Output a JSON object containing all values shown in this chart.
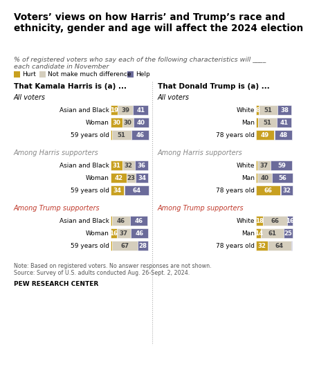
{
  "title": "Voters’ views on how Harris’ and Trump’s race and\nethnicity, gender and age will affect the 2024 election",
  "subtitle": "% of registered voters who say each of the following characteristics will ____\neach candidate in November",
  "note": "Note: Based on registered voters. No answer responses are not shown.\nSource: Survey of U.S. adults conducted Aug. 26-Sept. 2, 2024.",
  "source_bold": "PEW RESEARCH CENTER",
  "colors": {
    "hurt": "#C8A020",
    "neutral": "#D5CEBD",
    "help": "#6B6B9A"
  },
  "harris_col_title": "That Kamala Harris is (a) ...",
  "trump_col_title": "That Donald Trump is (a) ...",
  "sections": [
    {
      "label": "All voters",
      "label_color": "black",
      "harris": [
        {
          "row_label": "Asian and Black",
          "hurt": 19,
          "neutral": 39,
          "help": 41
        },
        {
          "row_label": "Woman",
          "hurt": 30,
          "neutral": 30,
          "help": 40
        },
        {
          "row_label": "59 years old",
          "hurt": 3,
          "neutral": 51,
          "help": 46
        }
      ],
      "trump": [
        {
          "row_label": "White",
          "hurt": 8,
          "neutral": 51,
          "help": 38
        },
        {
          "row_label": "Man",
          "hurt": 5,
          "neutral": 51,
          "help": 41
        },
        {
          "row_label": "78 years old",
          "hurt": 49,
          "neutral": 2,
          "help": 48
        }
      ]
    },
    {
      "label": "Among Harris supporters",
      "label_color": "#888888",
      "harris": [
        {
          "row_label": "Asian and Black",
          "hurt": 31,
          "neutral": 32,
          "help": 36
        },
        {
          "row_label": "Woman",
          "hurt": 42,
          "neutral": 23,
          "help": 34
        },
        {
          "row_label": "59 years old",
          "hurt": 34,
          "neutral": 2,
          "help": 64
        }
      ],
      "trump": [
        {
          "row_label": "White",
          "hurt": 3,
          "neutral": 37,
          "help": 59
        },
        {
          "row_label": "Man",
          "hurt": 4,
          "neutral": 40,
          "help": 56
        },
        {
          "row_label": "78 years old",
          "hurt": 66,
          "neutral": 2,
          "help": 32
        }
      ]
    },
    {
      "label": "Among Trump supporters",
      "label_color": "#C0392B",
      "harris": [
        {
          "row_label": "Asian and Black",
          "hurt": 4,
          "neutral": 46,
          "help": 46
        },
        {
          "row_label": "Woman",
          "hurt": 16,
          "neutral": 37,
          "help": 46
        },
        {
          "row_label": "59 years old",
          "hurt": 4,
          "neutral": 67,
          "help": 28
        }
      ],
      "trump": [
        {
          "row_label": "White",
          "hurt": 18,
          "neutral": 66,
          "help": 16
        },
        {
          "row_label": "Man",
          "hurt": 14,
          "neutral": 61,
          "help": 25
        },
        {
          "row_label": "78 years old",
          "hurt": 32,
          "neutral": 64,
          "help": 3
        }
      ]
    }
  ]
}
